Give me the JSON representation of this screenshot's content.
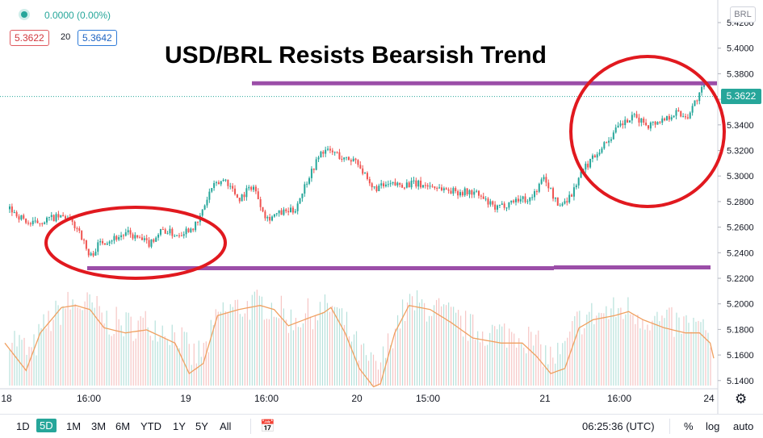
{
  "header": {
    "change_text": "0.0000 (0.00%)",
    "bid": "5.3622",
    "spread": "20",
    "ask": "5.3642",
    "title": "USD/BRL Resists Bearsish Trend",
    "axis_name": "BRL",
    "last_price": "5.3622"
  },
  "colors": {
    "up": "#26a69a",
    "down": "#ef5350",
    "resistance_line": "#9b4ea8",
    "circle": "#e1191f",
    "volume_ma": "#f0a060"
  },
  "chart_data": {
    "type": "candlestick",
    "title": "USD/BRL Resists Bearsish Trend",
    "y_axis_ticks": [
      "5.4200",
      "5.4000",
      "5.3800",
      "5.3600",
      "5.3400",
      "5.3200",
      "5.3000",
      "5.2800",
      "5.2600",
      "5.2400",
      "5.2200",
      "5.2000",
      "5.1800",
      "5.1600",
      "5.1400"
    ],
    "price_ylim": [
      5.22,
      5.42
    ],
    "x_axis_ticks": [
      "18",
      "16:00",
      "19",
      "16:00",
      "20",
      "15:00",
      "21",
      "16:00",
      "24"
    ],
    "last_price": 5.3622,
    "resistance_level": 5.3725,
    "support_level": 5.2285,
    "anchors": [
      [
        0,
        5.274
      ],
      [
        0.03,
        5.262
      ],
      [
        0.06,
        5.267
      ],
      [
        0.08,
        5.268
      ],
      [
        0.1,
        5.258
      ],
      [
        0.115,
        5.236
      ],
      [
        0.13,
        5.248
      ],
      [
        0.17,
        5.255
      ],
      [
        0.2,
        5.247
      ],
      [
        0.22,
        5.258
      ],
      [
        0.24,
        5.254
      ],
      [
        0.27,
        5.262
      ],
      [
        0.29,
        5.29
      ],
      [
        0.31,
        5.298
      ],
      [
        0.33,
        5.282
      ],
      [
        0.35,
        5.293
      ],
      [
        0.37,
        5.267
      ],
      [
        0.39,
        5.271
      ],
      [
        0.41,
        5.273
      ],
      [
        0.43,
        5.299
      ],
      [
        0.45,
        5.32
      ],
      [
        0.47,
        5.318
      ],
      [
        0.48,
        5.313
      ],
      [
        0.5,
        5.313
      ],
      [
        0.52,
        5.29
      ],
      [
        0.55,
        5.293
      ],
      [
        0.58,
        5.294
      ],
      [
        0.61,
        5.292
      ],
      [
        0.64,
        5.288
      ],
      [
        0.67,
        5.287
      ],
      [
        0.7,
        5.274
      ],
      [
        0.73,
        5.282
      ],
      [
        0.75,
        5.282
      ],
      [
        0.77,
        5.299
      ],
      [
        0.79,
        5.276
      ],
      [
        0.81,
        5.286
      ],
      [
        0.82,
        5.3
      ],
      [
        0.84,
        5.315
      ],
      [
        0.86,
        5.327
      ],
      [
        0.88,
        5.34
      ],
      [
        0.9,
        5.346
      ],
      [
        0.92,
        5.34
      ],
      [
        0.94,
        5.344
      ],
      [
        0.96,
        5.35
      ],
      [
        0.975,
        5.346
      ],
      [
        0.985,
        5.356
      ],
      [
        1,
        5.37
      ]
    ],
    "volume_ma": [
      [
        0,
        0.45
      ],
      [
        0.03,
        0.18
      ],
      [
        0.05,
        0.55
      ],
      [
        0.08,
        0.8
      ],
      [
        0.1,
        0.82
      ],
      [
        0.12,
        0.78
      ],
      [
        0.14,
        0.6
      ],
      [
        0.17,
        0.55
      ],
      [
        0.2,
        0.58
      ],
      [
        0.24,
        0.45
      ],
      [
        0.26,
        0.15
      ],
      [
        0.28,
        0.25
      ],
      [
        0.3,
        0.72
      ],
      [
        0.33,
        0.78
      ],
      [
        0.36,
        0.82
      ],
      [
        0.38,
        0.78
      ],
      [
        0.4,
        0.62
      ],
      [
        0.43,
        0.7
      ],
      [
        0.45,
        0.75
      ],
      [
        0.46,
        0.8
      ],
      [
        0.48,
        0.55
      ],
      [
        0.5,
        0.2
      ],
      [
        0.52,
        0.02
      ],
      [
        0.53,
        0.05
      ],
      [
        0.55,
        0.55
      ],
      [
        0.57,
        0.82
      ],
      [
        0.6,
        0.78
      ],
      [
        0.63,
        0.65
      ],
      [
        0.66,
        0.5
      ],
      [
        0.7,
        0.45
      ],
      [
        0.73,
        0.45
      ],
      [
        0.75,
        0.32
      ],
      [
        0.77,
        0.15
      ],
      [
        0.79,
        0.2
      ],
      [
        0.81,
        0.6
      ],
      [
        0.83,
        0.68
      ],
      [
        0.86,
        0.72
      ],
      [
        0.88,
        0.76
      ],
      [
        0.9,
        0.68
      ],
      [
        0.93,
        0.6
      ],
      [
        0.96,
        0.55
      ],
      [
        0.98,
        0.55
      ],
      [
        0.995,
        0.45
      ],
      [
        1,
        0.3
      ]
    ]
  },
  "toolbar": {
    "timeframes": [
      "1D",
      "5D",
      "1M",
      "3M",
      "6M",
      "YTD",
      "1Y",
      "5Y",
      "All"
    ],
    "active_timeframe": "5D",
    "clock": "06:25:36 (UTC)",
    "percent": "%",
    "log": "log",
    "auto": "auto"
  }
}
